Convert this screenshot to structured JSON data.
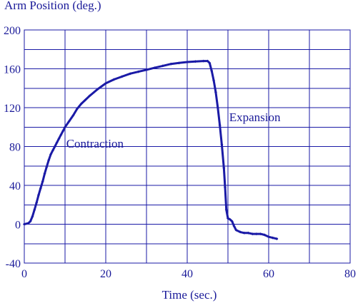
{
  "colors": {
    "line": "#1a1aa6",
    "grid": "#1a1aa6",
    "text": "#1a1a99",
    "background": "#ffffff"
  },
  "chart_data": {
    "type": "scatter",
    "title": "Arm Position (deg.)",
    "xlabel": "Time (sec.)",
    "ylabel": "Arm Position (deg.)",
    "xlim": [
      0,
      80
    ],
    "ylim": [
      -40,
      200
    ],
    "xticks": [
      0,
      20,
      40,
      60,
      80
    ],
    "yticks": [
      -40,
      0,
      40,
      80,
      120,
      160,
      200
    ],
    "xgrid_step": 10,
    "ygrid_step": 20,
    "grid": true,
    "legend": "none",
    "annotations": [
      {
        "text": "Contraction",
        "x": 10.3,
        "y": 79
      },
      {
        "text": "Expansion",
        "x": 50.3,
        "y": 106
      }
    ],
    "series": [
      {
        "marker": "small diamond",
        "points": [
          [
            0,
            0
          ],
          [
            1,
            1
          ],
          [
            1.5,
            3
          ],
          [
            2,
            8
          ],
          [
            2.5,
            15
          ],
          [
            3,
            22
          ],
          [
            3.5,
            30
          ],
          [
            4,
            37
          ],
          [
            4.5,
            44
          ],
          [
            5,
            52
          ],
          [
            5.5,
            59
          ],
          [
            6,
            66
          ],
          [
            6.5,
            72
          ],
          [
            7,
            76
          ],
          [
            7.5,
            80
          ],
          [
            8,
            84
          ],
          [
            8.5,
            88
          ],
          [
            9,
            92
          ],
          [
            9.5,
            96
          ],
          [
            10,
            100
          ],
          [
            11,
            106
          ],
          [
            12,
            112
          ],
          [
            13,
            119
          ],
          [
            14,
            124
          ],
          [
            15,
            128
          ],
          [
            16,
            132
          ],
          [
            18,
            139
          ],
          [
            20,
            145
          ],
          [
            22,
            149
          ],
          [
            24,
            152
          ],
          [
            26,
            155
          ],
          [
            28,
            157
          ],
          [
            30,
            159
          ],
          [
            32,
            161
          ],
          [
            34,
            163
          ],
          [
            36,
            165
          ],
          [
            38,
            166
          ],
          [
            40,
            167
          ],
          [
            42,
            167.5
          ],
          [
            44,
            168
          ],
          [
            45,
            168
          ],
          [
            45.5,
            166
          ],
          [
            46,
            158
          ],
          [
            46.5,
            148
          ],
          [
            47,
            136
          ],
          [
            47.5,
            120
          ],
          [
            48,
            102
          ],
          [
            48.5,
            82
          ],
          [
            49,
            58
          ],
          [
            49.3,
            38
          ],
          [
            49.6,
            15
          ],
          [
            50,
            6
          ],
          [
            50.5,
            5
          ],
          [
            51,
            3
          ],
          [
            51.5,
            -2
          ],
          [
            52,
            -6
          ],
          [
            53,
            -8
          ],
          [
            54,
            -9
          ],
          [
            55,
            -9
          ],
          [
            56,
            -10
          ],
          [
            57,
            -10
          ],
          [
            58,
            -10
          ],
          [
            59,
            -11
          ],
          [
            60,
            -13
          ],
          [
            61,
            -14
          ],
          [
            62,
            -15
          ]
        ]
      }
    ]
  }
}
